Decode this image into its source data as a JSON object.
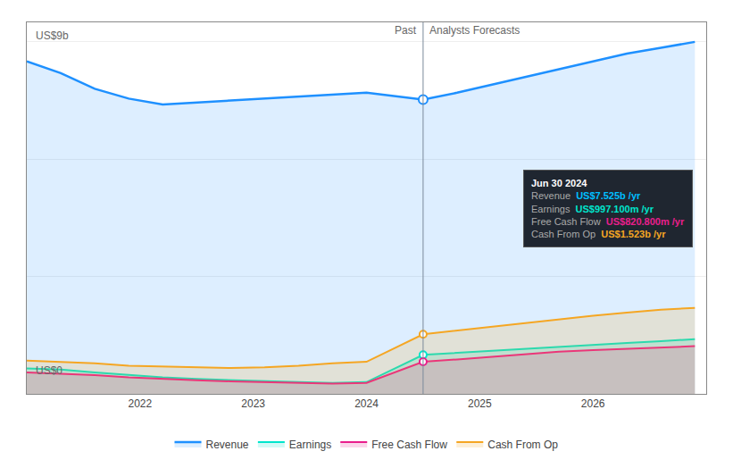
{
  "chart_data": {
    "type": "area",
    "series": [
      {
        "name": "Revenue",
        "color": "#1e90ff",
        "x": [
          2021.0,
          2021.3,
          2021.6,
          2021.9,
          2022.2,
          2022.5,
          2022.8,
          2023.1,
          2023.4,
          2023.7,
          2024.0,
          2024.5,
          2024.8,
          2025.1,
          2025.4,
          2025.7,
          2026.0,
          2026.3,
          2026.6,
          2026.9
        ],
        "values": [
          8.5,
          8.2,
          7.8,
          7.55,
          7.4,
          7.45,
          7.5,
          7.55,
          7.6,
          7.65,
          7.7,
          7.525,
          7.7,
          7.9,
          8.1,
          8.3,
          8.5,
          8.7,
          8.85,
          9.0
        ]
      },
      {
        "name": "Earnings",
        "color": "#00e5cc",
        "x": [
          2021.0,
          2021.3,
          2021.6,
          2021.9,
          2022.2,
          2022.5,
          2022.8,
          2023.1,
          2023.4,
          2023.7,
          2024.0,
          2024.5,
          2024.8,
          2025.1,
          2025.4,
          2025.7,
          2026.0,
          2026.3,
          2026.6,
          2026.9
        ],
        "values": [
          0.65,
          0.62,
          0.55,
          0.48,
          0.42,
          0.38,
          0.35,
          0.32,
          0.3,
          0.28,
          0.3,
          0.997,
          1.05,
          1.1,
          1.15,
          1.2,
          1.25,
          1.3,
          1.35,
          1.4
        ]
      },
      {
        "name": "Free Cash Flow",
        "color": "#e91e8c",
        "x": [
          2021.0,
          2021.3,
          2021.6,
          2021.9,
          2022.2,
          2022.5,
          2022.8,
          2023.1,
          2023.4,
          2023.7,
          2024.0,
          2024.5,
          2024.8,
          2025.1,
          2025.4,
          2025.7,
          2026.0,
          2026.3,
          2026.6,
          2026.9
        ],
        "values": [
          0.55,
          0.52,
          0.48,
          0.42,
          0.38,
          0.35,
          0.32,
          0.3,
          0.28,
          0.26,
          0.28,
          0.821,
          0.88,
          0.95,
          1.02,
          1.08,
          1.12,
          1.15,
          1.18,
          1.22
        ]
      },
      {
        "name": "Cash From Op",
        "color": "#f5a623",
        "x": [
          2021.0,
          2021.3,
          2021.6,
          2021.9,
          2022.2,
          2022.5,
          2022.8,
          2023.1,
          2023.4,
          2023.7,
          2024.0,
          2024.5,
          2024.8,
          2025.1,
          2025.4,
          2025.7,
          2026.0,
          2026.3,
          2026.6,
          2026.9
        ],
        "values": [
          0.85,
          0.82,
          0.78,
          0.72,
          0.7,
          0.68,
          0.66,
          0.68,
          0.72,
          0.78,
          0.82,
          1.523,
          1.62,
          1.72,
          1.82,
          1.92,
          2.0,
          2.08,
          2.15,
          2.2
        ]
      }
    ],
    "divider_x": 2024.5,
    "xlim": [
      2021.0,
      2027.0
    ],
    "xticks": [
      2022,
      2023,
      2024,
      2025,
      2026
    ],
    "ylim": [
      0,
      9.5
    ],
    "yticks": [
      0,
      3,
      6,
      9
    ],
    "grid": true,
    "tick_labels": "x",
    "legend": "bottom",
    "annotations": [
      {
        "text": "US$9b"
      },
      {
        "text": "US$0"
      },
      {
        "text": "Past",
        "x": 2024.5,
        "y": 9.1
      },
      {
        "text": "Analysts Forecasts",
        "x": 2024.5,
        "y": 9.1
      }
    ],
    "tooltip": {
      "title": "Jun 30 2024",
      "rows": [
        {
          "label": "Revenue",
          "value": "US$7.525b /yr",
          "color": "#00bfff"
        },
        {
          "label": "Earnings",
          "value": "US$997.100m /yr",
          "color": "#00e5cc"
        },
        {
          "label": "Free Cash Flow",
          "value": "US$820.800m /yr",
          "color": "#e91e8c"
        },
        {
          "label": "Cash From Op",
          "value": "US$1.523b /yr",
          "color": "#f5a623"
        }
      ]
    }
  }
}
